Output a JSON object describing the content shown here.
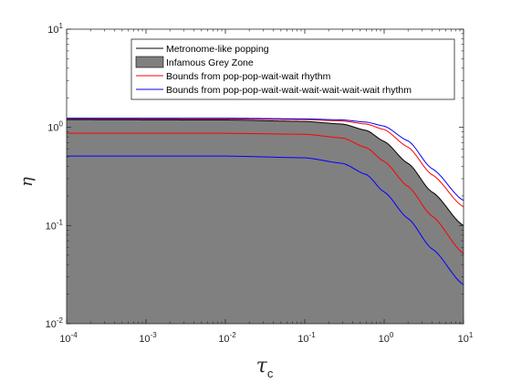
{
  "chart_data": {
    "type": "area",
    "title": "",
    "xlabel": "τ",
    "xlabel_sub": "c",
    "ylabel": "η",
    "x_scale": "log",
    "y_scale": "log",
    "xlim": [
      0.0001,
      10
    ],
    "ylim": [
      0.01,
      10
    ],
    "x_ticks": [
      {
        "base": "10",
        "exp": "-4",
        "value": 0.0001
      },
      {
        "base": "10",
        "exp": "-3",
        "value": 0.001
      },
      {
        "base": "10",
        "exp": "-2",
        "value": 0.01
      },
      {
        "base": "10",
        "exp": "-1",
        "value": 0.1
      },
      {
        "base": "10",
        "exp": "0",
        "value": 1
      },
      {
        "base": "10",
        "exp": "1",
        "value": 10
      }
    ],
    "y_ticks": [
      {
        "base": "10",
        "exp": "-2",
        "value": 0.01
      },
      {
        "base": "10",
        "exp": "-1",
        "value": 0.1
      },
      {
        "base": "10",
        "exp": "0",
        "value": 1
      },
      {
        "base": "10",
        "exp": "1",
        "value": 10
      }
    ],
    "grid": false,
    "legend_position": "top-right",
    "series": [
      {
        "name": "Metronome-like popping",
        "color": "#000000",
        "kind": "line",
        "x": [
          0.0001,
          0.01,
          0.1,
          0.3,
          0.6,
          1,
          2,
          4,
          10
        ],
        "y": [
          1.2,
          1.19,
          1.15,
          1.08,
          0.93,
          0.72,
          0.43,
          0.22,
          0.1
        ]
      },
      {
        "name": "Infamous Grey Zone",
        "color": "#808080",
        "kind": "area",
        "x": [
          0.0001,
          0.01,
          0.1,
          0.3,
          0.6,
          1,
          2,
          4,
          10
        ],
        "y": [
          1.2,
          1.19,
          1.15,
          1.08,
          0.93,
          0.72,
          0.43,
          0.22,
          0.1
        ]
      },
      {
        "name": "Bounds from pop-pop-wait-wait rhythm",
        "color": "#ff0000",
        "kind": "line-pair",
        "x": [
          0.0001,
          0.01,
          0.1,
          0.3,
          0.6,
          1,
          2,
          4,
          10
        ],
        "upper": [
          1.22,
          1.22,
          1.2,
          1.16,
          1.08,
          0.95,
          0.63,
          0.33,
          0.155
        ],
        "lower": [
          0.87,
          0.87,
          0.85,
          0.78,
          0.62,
          0.45,
          0.25,
          0.125,
          0.052
        ]
      },
      {
        "name": "Bounds from pop-pop-wait-wait-wait-wait-wait-wait rhythm",
        "color": "#0000ff",
        "kind": "line-pair",
        "x": [
          0.0001,
          0.01,
          0.1,
          0.3,
          0.6,
          1,
          2,
          4,
          10
        ],
        "upper": [
          1.24,
          1.24,
          1.22,
          1.19,
          1.13,
          1.03,
          0.73,
          0.38,
          0.18
        ],
        "lower": [
          0.51,
          0.51,
          0.49,
          0.43,
          0.33,
          0.22,
          0.118,
          0.058,
          0.025
        ]
      }
    ]
  }
}
